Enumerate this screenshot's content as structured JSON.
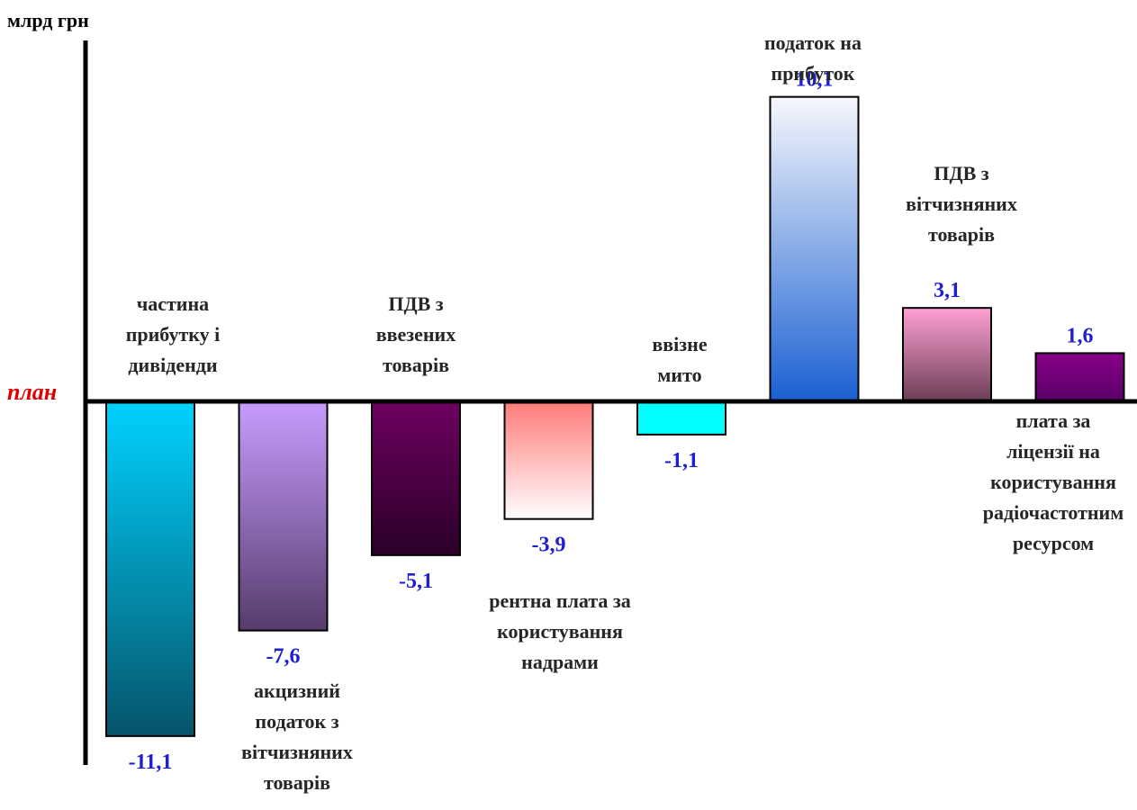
{
  "chart_data": {
    "type": "bar",
    "ylabel": "млрд грн",
    "baseline_label": "план",
    "categories": [
      "частина прибутку і дивіденди",
      "акцизний податок з вітчизняних товарів",
      "ПДВ з ввезених товарів",
      "рентна плата за користування надрами",
      "ввізне мито",
      "податок на прибуток",
      "ПДВ з вітчизняних товарів",
      "плата за ліцензії на користування радіочастотним ресурсом"
    ],
    "values": [
      -11.1,
      -7.6,
      -5.1,
      -3.9,
      -1.1,
      10.1,
      3.1,
      1.6
    ],
    "value_labels": [
      "-11,1",
      "-7,6",
      "-5,1",
      "-3,9",
      "-1,1",
      "10,1",
      "3,1",
      "1,6"
    ],
    "category_lines": [
      [
        "частина",
        "прибутку і",
        "дивіденди"
      ],
      [
        "акцизний",
        "податок з",
        "вітчизняних",
        "товарів"
      ],
      [
        "ПДВ з",
        "ввезених",
        "товарів"
      ],
      [
        "рентна плата за",
        "користування",
        "надрами"
      ],
      [
        "ввізне",
        "мито"
      ],
      [
        "податок на",
        "прибуток"
      ],
      [
        "ПДВ з",
        "вітчизняних",
        "товарів"
      ],
      [
        "плата за",
        "ліцензії на",
        "користування",
        "радіочастотним",
        "ресурсом"
      ]
    ],
    "colors": [
      [
        "#00d2ff",
        "#06546a"
      ],
      [
        "#c89cff",
        "#553c6b"
      ],
      [
        "#6e0060",
        "#2a0028"
      ],
      [
        "#ff7a78",
        "#ffffff"
      ],
      [
        "#00ffff",
        "#00ffff"
      ],
      [
        "#f7f8fc",
        "#1a60d2"
      ],
      [
        "#ffa0d4",
        "#6b3e55"
      ],
      [
        "#880088",
        "#5a0068"
      ]
    ]
  }
}
